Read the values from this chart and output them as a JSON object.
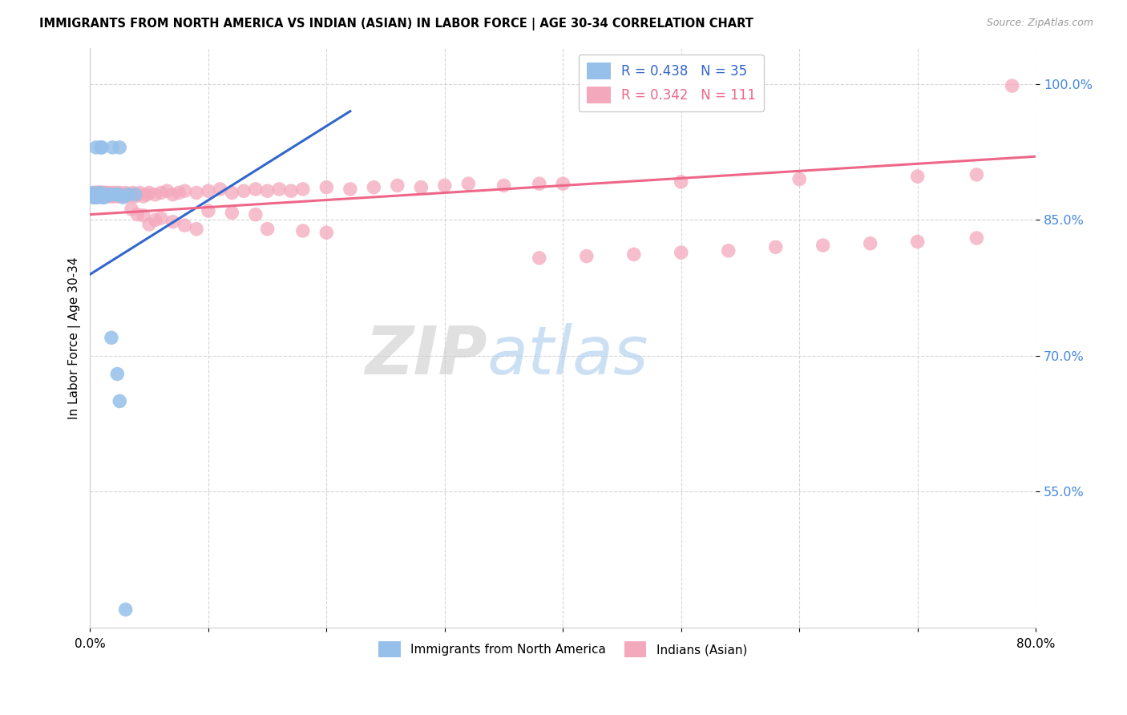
{
  "title": "IMMIGRANTS FROM NORTH AMERICA VS INDIAN (ASIAN) IN LABOR FORCE | AGE 30-34 CORRELATION CHART",
  "source": "Source: ZipAtlas.com",
  "ylabel_left": "In Labor Force | Age 30-34",
  "y_ticks": [
    0.55,
    0.7,
    0.85,
    1.0
  ],
  "y_tick_labels": [
    "55.0%",
    "70.0%",
    "85.0%",
    "100.0%"
  ],
  "x_min": 0.0,
  "x_max": 0.8,
  "y_min": 0.4,
  "y_max": 1.04,
  "blue_color": "#96C0EA",
  "pink_color": "#F4A8BC",
  "blue_line_color": "#3366CC",
  "pink_line_color": "#EE6688",
  "legend_label_blue": "Immigrants from North America",
  "legend_label_pink": "Indians (Asian)",
  "blue_x": [
    0.001,
    0.002,
    0.003,
    0.003,
    0.004,
    0.004,
    0.005,
    0.005,
    0.006,
    0.006,
    0.007,
    0.007,
    0.008,
    0.008,
    0.009,
    0.01,
    0.01,
    0.011,
    0.012,
    0.013,
    0.014,
    0.015,
    0.016,
    0.018,
    0.019,
    0.022,
    0.024,
    0.025,
    0.028,
    0.032,
    0.018,
    0.023,
    0.025,
    0.03,
    0.038
  ],
  "blue_y": [
    0.878,
    0.88,
    0.875,
    0.878,
    0.875,
    0.878,
    0.875,
    0.93,
    0.875,
    0.875,
    0.878,
    0.878,
    0.878,
    0.88,
    0.93,
    0.93,
    0.875,
    0.875,
    0.875,
    0.878,
    0.878,
    0.878,
    0.878,
    0.878,
    0.93,
    0.878,
    0.878,
    0.93,
    0.875,
    0.878,
    0.72,
    0.68,
    0.65,
    0.42,
    0.878
  ],
  "pink_x": [
    0.001,
    0.001,
    0.002,
    0.002,
    0.002,
    0.003,
    0.003,
    0.003,
    0.004,
    0.004,
    0.004,
    0.005,
    0.005,
    0.005,
    0.006,
    0.006,
    0.006,
    0.007,
    0.007,
    0.008,
    0.008,
    0.009,
    0.009,
    0.01,
    0.01,
    0.011,
    0.011,
    0.012,
    0.012,
    0.013,
    0.013,
    0.014,
    0.015,
    0.016,
    0.017,
    0.018,
    0.019,
    0.02,
    0.021,
    0.022,
    0.023,
    0.024,
    0.025,
    0.026,
    0.028,
    0.03,
    0.032,
    0.034,
    0.036,
    0.038,
    0.04,
    0.042,
    0.045,
    0.048,
    0.05,
    0.055,
    0.06,
    0.065,
    0.07,
    0.075,
    0.08,
    0.09,
    0.1,
    0.11,
    0.12,
    0.13,
    0.14,
    0.15,
    0.16,
    0.17,
    0.18,
    0.2,
    0.22,
    0.24,
    0.26,
    0.28,
    0.3,
    0.32,
    0.35,
    0.38,
    0.1,
    0.12,
    0.14,
    0.15,
    0.18,
    0.2,
    0.04,
    0.05,
    0.06,
    0.07,
    0.08,
    0.09,
    0.035,
    0.045,
    0.055,
    0.4,
    0.5,
    0.6,
    0.7,
    0.75,
    0.38,
    0.42,
    0.46,
    0.5,
    0.54,
    0.58,
    0.62,
    0.66,
    0.7,
    0.75,
    0.78
  ],
  "pink_y": [
    0.876,
    0.878,
    0.875,
    0.876,
    0.878,
    0.875,
    0.876,
    0.878,
    0.875,
    0.876,
    0.88,
    0.876,
    0.878,
    0.88,
    0.876,
    0.878,
    0.88,
    0.876,
    0.88,
    0.876,
    0.88,
    0.876,
    0.88,
    0.876,
    0.88,
    0.876,
    0.88,
    0.876,
    0.88,
    0.876,
    0.88,
    0.876,
    0.878,
    0.88,
    0.876,
    0.878,
    0.88,
    0.876,
    0.878,
    0.88,
    0.876,
    0.878,
    0.88,
    0.876,
    0.878,
    0.88,
    0.876,
    0.878,
    0.88,
    0.876,
    0.878,
    0.88,
    0.876,
    0.878,
    0.88,
    0.878,
    0.88,
    0.882,
    0.878,
    0.88,
    0.882,
    0.88,
    0.882,
    0.884,
    0.88,
    0.882,
    0.884,
    0.882,
    0.884,
    0.882,
    0.884,
    0.886,
    0.884,
    0.886,
    0.888,
    0.886,
    0.888,
    0.89,
    0.888,
    0.89,
    0.86,
    0.858,
    0.856,
    0.84,
    0.838,
    0.836,
    0.856,
    0.845,
    0.852,
    0.848,
    0.844,
    0.84,
    0.862,
    0.855,
    0.85,
    0.89,
    0.892,
    0.895,
    0.898,
    0.9,
    0.808,
    0.81,
    0.812,
    0.814,
    0.816,
    0.82,
    0.822,
    0.824,
    0.826,
    0.83,
    0.998
  ],
  "blue_trend_x": [
    0.0,
    0.22
  ],
  "blue_trend_y": [
    0.79,
    0.97
  ],
  "pink_trend_x": [
    0.0,
    0.8
  ],
  "pink_trend_y": [
    0.856,
    0.92
  ]
}
